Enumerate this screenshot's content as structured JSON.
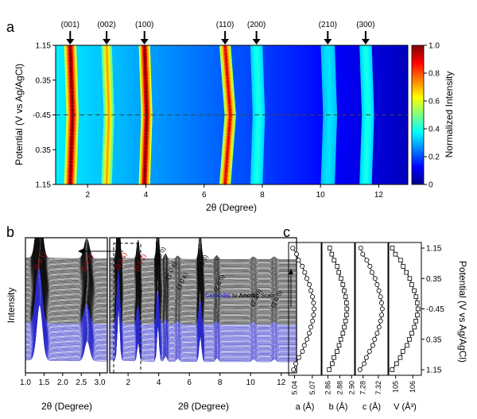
{
  "panel_labels": {
    "a": "a",
    "b": "b",
    "c": "c"
  },
  "chart_data": [
    {
      "panel": "a",
      "type": "heatmap",
      "xlabel": "2θ (Degree)",
      "ylabel": "Potential (V vs Ag/AgCl)",
      "xlim": [
        0.9,
        13.0
      ],
      "xticks": [
        "2",
        "4",
        "6",
        "8",
        "10",
        "12"
      ],
      "xtick_values": [
        2,
        4,
        6,
        8,
        10,
        12
      ],
      "yticks": [
        "1.15",
        "0.35",
        "-0.45",
        "0.35",
        "1.15"
      ],
      "colorbar": {
        "label": "Normalized Intensity",
        "ticks": [
          "1.0",
          "0.8",
          "0.6",
          "0.4",
          "0.2",
          "0"
        ],
        "range": [
          0,
          1
        ]
      },
      "peaks": [
        {
          "label": "(001)",
          "x": 1.4,
          "intensity": 1.0,
          "shift": 0.04,
          "width": 0.14
        },
        {
          "label": "(002)",
          "x": 2.65,
          "intensity": 0.72,
          "shift": 0.04,
          "width": 0.12
        },
        {
          "label": "(100)",
          "x": 3.95,
          "intensity": 1.0,
          "shift": 0.04,
          "width": 0.13
        },
        {
          "label": "(110)",
          "x": 6.72,
          "intensity": 0.9,
          "shift": 0.09,
          "width": 0.13
        },
        {
          "label": "(200)",
          "x": 7.8,
          "intensity": 0.4,
          "shift": 0.04,
          "width": 0.14
        },
        {
          "label": "(210)",
          "x": 10.25,
          "intensity": 0.35,
          "shift": 0.04,
          "width": 0.16
        },
        {
          "label": "(300)",
          "x": 11.55,
          "intensity": 0.4,
          "shift": 0.04,
          "width": 0.14
        }
      ],
      "background_level": 0.3
    },
    {
      "panel": "b",
      "type": "line",
      "ylabel": "Intensity",
      "left_plot": {
        "xlabel": "2θ (Degree)",
        "xlim": [
          1.0,
          3.2
        ],
        "xticks": [
          "1.0",
          "1.5",
          "2.0",
          "2.5",
          "3.0"
        ],
        "xtick_values": [
          1.0,
          1.5,
          2.0,
          2.5,
          3.0
        ],
        "peak_labels": [
          "(0 0 1)",
          "(0 0 2)"
        ]
      },
      "right_plot": {
        "xlabel": "2θ (Degree)",
        "xlim": [
          0.8,
          13.0
        ],
        "xticks": [
          "2",
          "4",
          "6",
          "8",
          "10",
          "12"
        ],
        "xtick_values": [
          2,
          4,
          6,
          8,
          10,
          12
        ],
        "peak_labels": [
          "(0 0 1)",
          "(0 0 2)",
          "(1 0 0)",
          "(1 0 4)",
          "(1 0 6)",
          "(1 1 0)",
          "(2 0 0)",
          "(2 1 0)",
          "(3 0 0)"
        ],
        "legend": {
          "part1": "Cathodic",
          "part2": " to ",
          "part3": "Anodic",
          "part4": " Scan"
        }
      },
      "series": [
        {
          "color": "#2b2bc8",
          "count": 40
        },
        {
          "color": "#111111",
          "count": 70
        }
      ]
    },
    {
      "panel": "c",
      "type": "line",
      "ylabel": "Potential (V vs Ag/AgCl)",
      "yticks": [
        "1.15",
        "0.35",
        "-0.45",
        "0.35",
        "1.15"
      ],
      "subplots": [
        {
          "xlabel": "a (Å)",
          "xticks": [
            "5.04",
            "5.07"
          ],
          "xtick_values": [
            5.04,
            5.07
          ],
          "xlim": [
            5.03,
            5.085
          ],
          "min": 5.037,
          "max": 5.073,
          "marker": "circle"
        },
        {
          "xlabel": "b (Å)",
          "xticks": [
            "2.86",
            "2.88",
            "2.90"
          ],
          "xtick_values": [
            2.86,
            2.88,
            2.9
          ],
          "xlim": [
            2.85,
            2.905
          ],
          "min": 2.862,
          "max": 2.892,
          "marker": "square"
        },
        {
          "xlabel": "c (Å)",
          "xticks": [
            "7.28",
            "7.32"
          ],
          "xtick_values": [
            7.28,
            7.32
          ],
          "xlim": [
            7.26,
            7.345
          ],
          "min": 7.272,
          "max": 7.33,
          "marker": "circle"
        },
        {
          "xlabel": "V (Å³)",
          "xticks": [
            "105",
            "106"
          ],
          "xtick_values": [
            105,
            106
          ],
          "xlim": [
            104.6,
            106.5
          ],
          "min": 104.8,
          "max": 106.3,
          "marker": "square"
        }
      ]
    }
  ]
}
